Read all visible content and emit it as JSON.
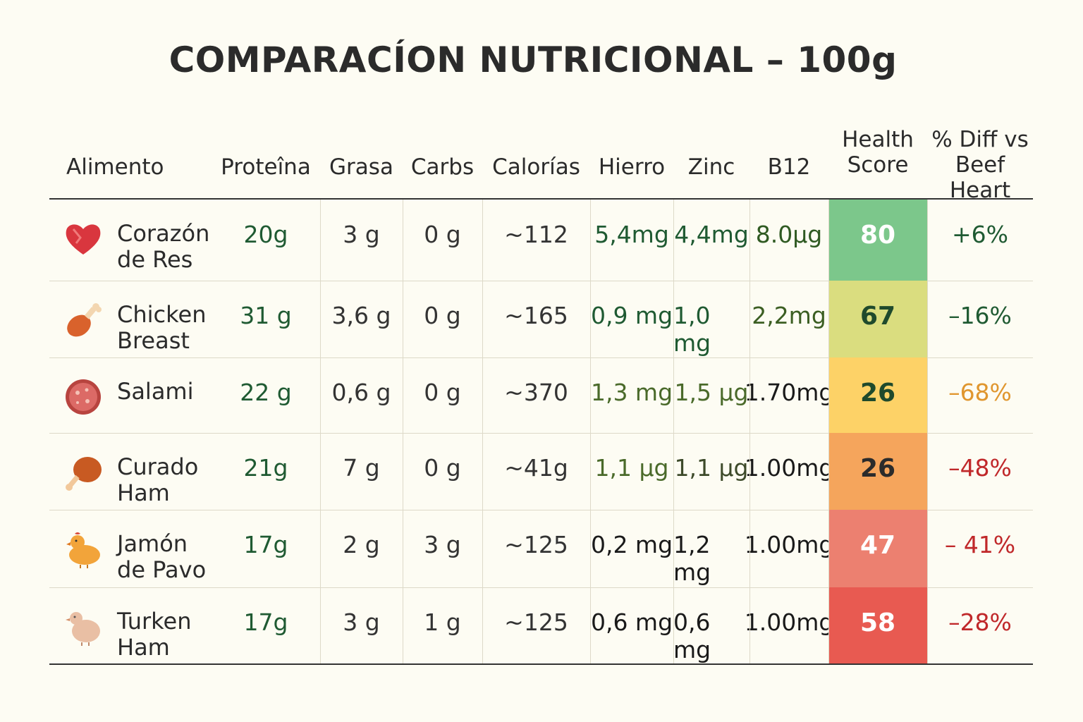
{
  "title": "COMPARACÍON NUTRICIONAL – 100g",
  "chart_data": {
    "type": "table",
    "title": "COMPARACÍON NUTRICIONAL – 100g",
    "columns": [
      "Alimento",
      "Proteîna",
      "Grasa",
      "Carbs",
      "Calorías",
      "Hierro",
      "Zinc",
      "B12",
      "Health Score",
      "% Diff vs Beef Heart"
    ],
    "rows": [
      {
        "icon": "heart-icon",
        "name": "Corazón de Res",
        "protein": "20g",
        "fat": "3 g",
        "carbs": "0 g",
        "calories": "~112",
        "iron": "5,4mg",
        "zinc": "4,4mg",
        "b12": "8.0µg",
        "score": "80",
        "diff": "+6%",
        "score_color": "#7cc78b",
        "score_text_color": "#ffffff",
        "diff_color": "#1f5a32",
        "micro_colors": [
          "#1f5a32",
          "#1f5a32",
          "#2f5a22"
        ]
      },
      {
        "icon": "drumstick-icon",
        "name": "Chicken Breast",
        "protein": "31 g",
        "fat": "3,6 g",
        "carbs": "0 g",
        "calories": "~165",
        "iron": "0,9 mg",
        "zinc": "1,0 mg",
        "b12": "2,2mg",
        "score": "67",
        "diff": "–16%",
        "score_color": "#dadd7f",
        "score_text_color": "#1f4a2c",
        "diff_color": "#1f5a32",
        "micro_colors": [
          "#1f5a32",
          "#1f5a32",
          "#3b5e22"
        ]
      },
      {
        "icon": "salami-icon",
        "name": "Salami",
        "protein": "22 g",
        "fat": "0,6 g",
        "carbs": "0 g",
        "calories": "~370",
        "iron": "1,3 mg",
        "zinc": "1,5 µg",
        "b12": "1.70mg",
        "score": "26",
        "diff": "–68%",
        "score_color": "#fdd267",
        "score_text_color": "#1f4a2c",
        "diff_color": "#e0962e",
        "micro_colors": [
          "#4a6a2a",
          "#4a6a2a",
          "#1a1a1a"
        ]
      },
      {
        "icon": "ham-icon",
        "name": "Curado Ham",
        "protein": "21g",
        "fat": "7 g",
        "carbs": "0 g",
        "calories": "~41g",
        "iron": "1,1 µg",
        "zinc": "1,1 µg",
        "b12": "1.00mg",
        "score": "26",
        "diff": "–48%",
        "score_color": "#f5a55c",
        "score_text_color": "#2b2b2b",
        "diff_color": "#c0282a",
        "micro_colors": [
          "#4a6a2a",
          "#3d4a2a",
          "#1a1a1a"
        ]
      },
      {
        "icon": "chicken-icon",
        "name": "Jamón de Pavo",
        "protein": "17g",
        "fat": "2 g",
        "carbs": "3 g",
        "calories": "~125",
        "iron": "0,2 mg",
        "zinc": "1,2 mg",
        "b12": "1.00mg",
        "score": "47",
        "diff": "– 41%",
        "score_color": "#ec8070",
        "score_text_color": "#ffffff",
        "diff_color": "#c0282a",
        "micro_colors": [
          "#1a1a1a",
          "#1a1a1a",
          "#1a1a1a"
        ]
      },
      {
        "icon": "turkey-icon",
        "name": "Turken Ham",
        "protein": "17g",
        "fat": "3 g",
        "carbs": "1 g",
        "calories": "~125",
        "iron": "0,6 mg",
        "zinc": "0,6 mg",
        "b12": "1.00mg",
        "score": "58",
        "diff": "–28%",
        "score_color": "#e85a51",
        "score_text_color": "#ffffff",
        "diff_color": "#c0282a",
        "micro_colors": [
          "#1a1a1a",
          "#1a1a1a",
          "#1a1a1a"
        ]
      }
    ],
    "protein_color": "#1f5a32",
    "text_color": "#333333"
  }
}
